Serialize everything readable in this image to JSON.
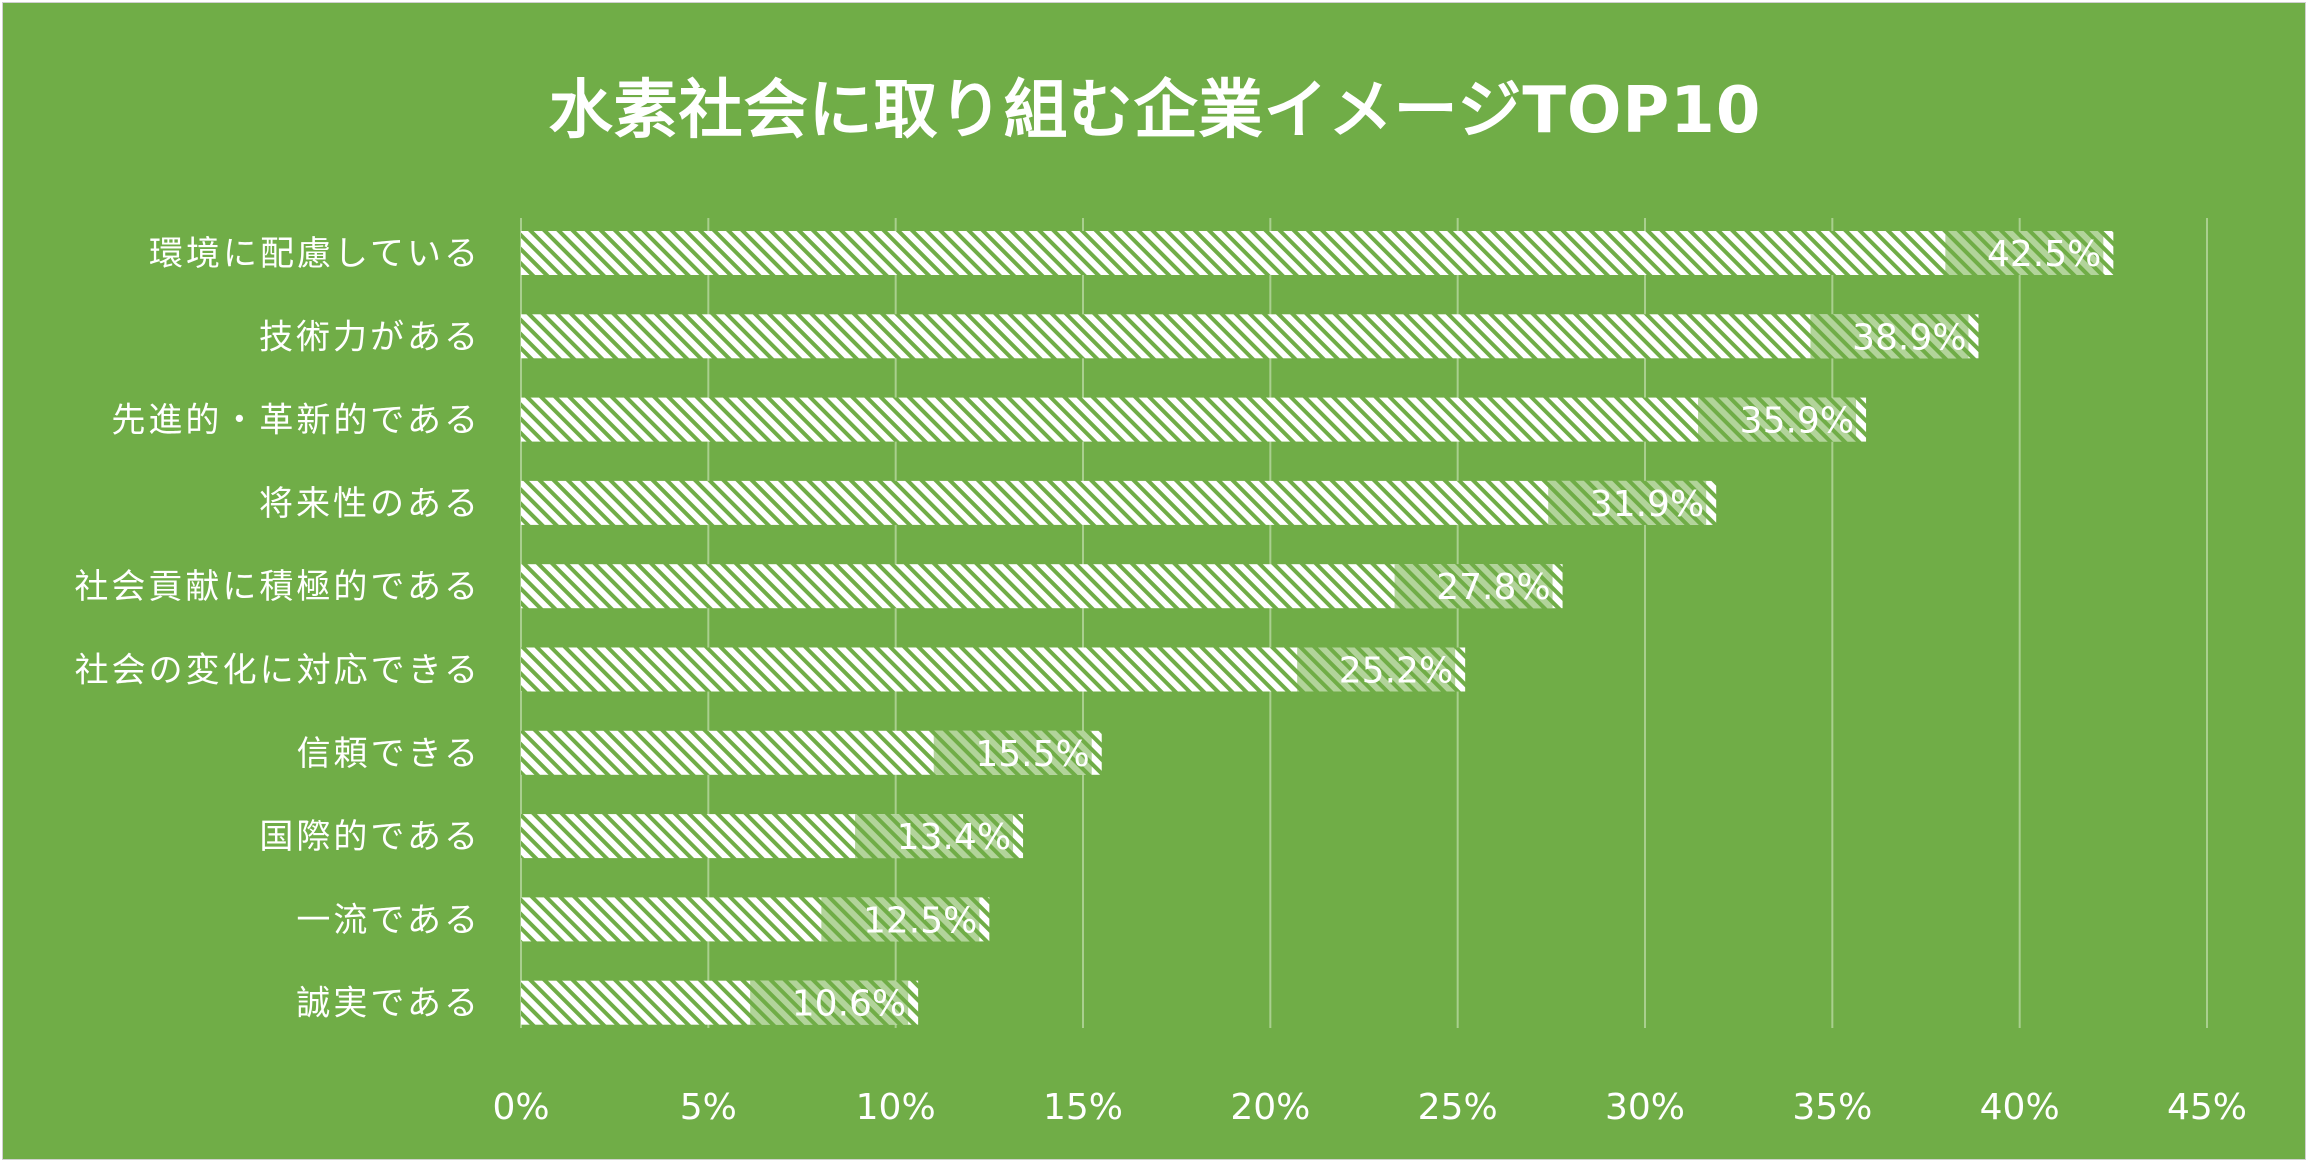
{
  "chart_data": {
    "type": "bar",
    "orientation": "horizontal",
    "title": "水素社会に取り組む企業イメージTOP10",
    "categories": [
      "環境に配慮している",
      "技術力がある",
      "先進的・革新的である",
      "将来性のある",
      "社会貢献に積極的である",
      "社会の変化に対応できる",
      "信頼できる",
      "国際的である",
      "一流である",
      "誠実である"
    ],
    "values": [
      42.5,
      38.9,
      35.9,
      31.9,
      27.8,
      25.2,
      15.5,
      13.4,
      12.5,
      10.6
    ],
    "data_labels": [
      "42.5%",
      "38.9%",
      "35.9%",
      "31.9%",
      "27.8%",
      "25.2%",
      "15.5%",
      "13.4%",
      "12.5%",
      "10.6%"
    ],
    "xlim": [
      0,
      45
    ],
    "xticks": [
      0,
      5,
      10,
      15,
      20,
      25,
      30,
      35,
      40,
      45
    ],
    "xtick_labels": [
      "0%",
      "5%",
      "10%",
      "15%",
      "20%",
      "25%",
      "30%",
      "35%",
      "40%",
      "45%"
    ],
    "xlabel": "",
    "ylabel": "",
    "grid": "vertical",
    "legend": "none",
    "colors": {
      "background": "#70ad47",
      "bar_fill": "#ffffff",
      "bar_hatch": "#70ad47",
      "text": "#ffffff",
      "gridline": "#a9cf8e"
    }
  }
}
